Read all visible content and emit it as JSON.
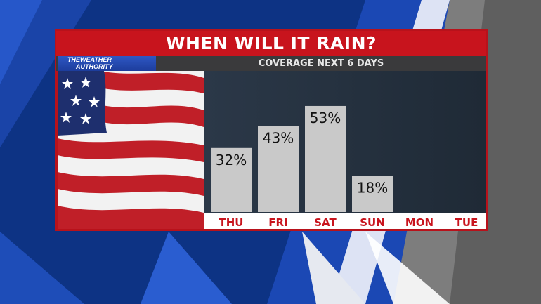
{
  "header": {
    "title": "WHEN WILL IT RAIN?",
    "subtitle": "COVERAGE NEXT 6 DAYS"
  },
  "logo": {
    "line1": "THEWEATHER",
    "line2": "AUTHORITY"
  },
  "colors": {
    "brand_red": "#c8141d",
    "bar_fill": "#c9c9c9",
    "day_label": "#c8141d",
    "background_blue": "#0c2f7a"
  },
  "chart_data": {
    "type": "bar",
    "title": "WHEN WILL IT RAIN?",
    "subtitle": "COVERAGE NEXT 6 DAYS",
    "categories": [
      "THU",
      "FRI",
      "SAT",
      "SUN",
      "MON",
      "TUE"
    ],
    "values": [
      32,
      43,
      53,
      18,
      null,
      null
    ],
    "value_labels": [
      "32%",
      "43%",
      "53%",
      "18%",
      "",
      ""
    ],
    "unit": "%",
    "ylim": [
      0,
      60
    ],
    "grid": false,
    "legend": "none"
  }
}
